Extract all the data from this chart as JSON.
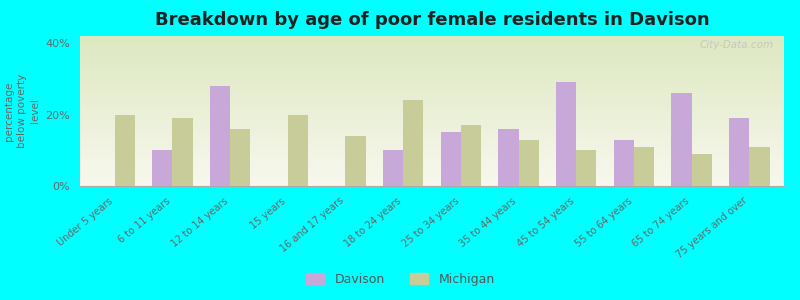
{
  "title": "Breakdown by age of poor female residents in Davison",
  "ylabel": "percentage\nbelow poverty\nlevel",
  "background_color": "#00FFFF",
  "plot_bg_color_top": "#f8f8ee",
  "plot_bg_color_bottom": "#dde8c0",
  "categories": [
    "Under 5 years",
    "6 to 11 years",
    "12 to 14 years",
    "15 years",
    "16 and 17 years",
    "18 to 24 years",
    "25 to 34 years",
    "35 to 44 years",
    "45 to 54 years",
    "55 to 64 years",
    "65 to 74 years",
    "75 years and over"
  ],
  "davison": [
    0,
    10,
    28,
    0,
    0,
    10,
    15,
    16,
    29,
    13,
    26,
    19
  ],
  "michigan": [
    20,
    19,
    16,
    20,
    14,
    24,
    17,
    13,
    10,
    11,
    9,
    11
  ],
  "davison_color": "#c8a8d8",
  "michigan_color": "#c8cc98",
  "ylim": [
    0,
    42
  ],
  "yticks": [
    0,
    20,
    40
  ],
  "ytick_labels": [
    "0%",
    "20%",
    "40%"
  ],
  "bar_width": 0.35,
  "watermark": "City-Data.com",
  "legend_labels": [
    "Davison",
    "Michigan"
  ]
}
